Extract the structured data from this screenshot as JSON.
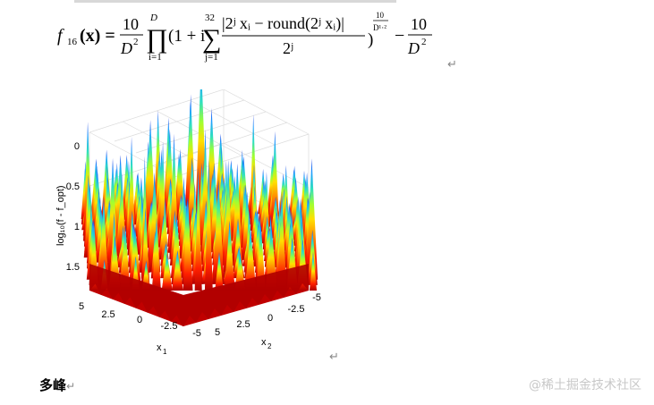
{
  "formula": {
    "lhs_func": "f",
    "lhs_sub": "16",
    "lhs_arg": "(x) =",
    "frac1_num": "10",
    "frac1_den": "D",
    "frac1_den_exp": "2",
    "prod_upper": "D",
    "prod_lower": "i=1",
    "one_plus_i": "(1 + i",
    "sum_upper": "32",
    "sum_lower": "j=1",
    "inner_num": "|2ʲ xᵢ − round(2ʲ xᵢ)|",
    "inner_den": "2ʲ",
    "close_paren": ")",
    "outer_exp_num": "10",
    "outer_exp_den": "D¹·²",
    "minus": "−",
    "frac2_num": "10",
    "frac2_den": "D",
    "frac2_den_exp": "2"
  },
  "para_mark": "↵",
  "plot": {
    "z_ticks": [
      "0",
      "0.5",
      "1",
      "1.5"
    ],
    "x1_ticks": [
      "5",
      "2.5",
      "0",
      "-2.5",
      "-5"
    ],
    "x2_ticks": [
      "-5",
      "-2.5",
      "0",
      "2.5",
      "5"
    ],
    "zlabel": "log₁₀(f - f_opt)",
    "x1_label": "x",
    "x1_sub": "1",
    "x2_label": "x",
    "x2_sub": "2"
  },
  "caption": "多峰",
  "caption_mark": "↵",
  "watermark": "@稀土掘金技术社区",
  "colors": {
    "surface_low": "#c00000",
    "surface_mid": "#ffd400",
    "surface_high": "#1a3cff",
    "grid": "#dcdcdc"
  }
}
